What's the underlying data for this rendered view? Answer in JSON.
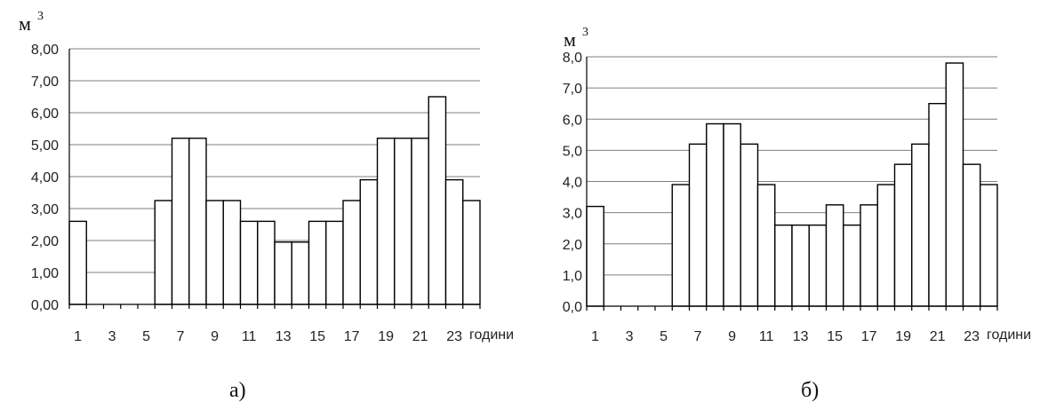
{
  "chart_data": [
    {
      "type": "bar",
      "caption": "а)",
      "unit": "м",
      "unit_superscript": "3",
      "xlabel": "години",
      "categories": [
        1,
        2,
        3,
        4,
        5,
        6,
        7,
        8,
        9,
        10,
        11,
        12,
        13,
        14,
        15,
        16,
        17,
        18,
        19,
        20,
        21,
        22,
        23,
        24
      ],
      "x_tick_labels": [
        "1",
        "3",
        "5",
        "7",
        "9",
        "11",
        "13",
        "15",
        "17",
        "19",
        "21",
        "23"
      ],
      "values": [
        2.6,
        0,
        0,
        0,
        0,
        3.25,
        5.2,
        5.2,
        3.25,
        3.25,
        2.6,
        2.6,
        1.95,
        1.95,
        2.6,
        2.6,
        3.25,
        3.9,
        5.2,
        5.2,
        5.2,
        6.5,
        3.9,
        3.25
      ],
      "y_tick_labels": [
        "0,00",
        "1,00",
        "2,00",
        "3,00",
        "4,00",
        "5,00",
        "6,00",
        "7,00",
        "8,00"
      ],
      "ylim": [
        0,
        8
      ],
      "grid": true
    },
    {
      "type": "bar",
      "caption": "б)",
      "unit": "м",
      "unit_superscript": "3",
      "xlabel": "години",
      "categories": [
        1,
        2,
        3,
        4,
        5,
        6,
        7,
        8,
        9,
        10,
        11,
        12,
        13,
        14,
        15,
        16,
        17,
        18,
        19,
        20,
        21,
        22,
        23,
        24
      ],
      "x_tick_labels": [
        "1",
        "3",
        "5",
        "7",
        "9",
        "11",
        "13",
        "15",
        "17",
        "19",
        "21",
        "23"
      ],
      "values": [
        3.2,
        0,
        0,
        0,
        0,
        3.9,
        5.2,
        5.85,
        5.85,
        5.2,
        3.9,
        2.6,
        2.6,
        2.6,
        3.25,
        2.6,
        3.25,
        3.9,
        4.55,
        5.2,
        6.5,
        7.8,
        4.55,
        3.9
      ],
      "y_tick_labels": [
        "0,0",
        "1,0",
        "2,0",
        "3,0",
        "4,0",
        "5,0",
        "6,0",
        "7,0",
        "8,0"
      ],
      "ylim": [
        0,
        8
      ],
      "grid": true
    }
  ]
}
